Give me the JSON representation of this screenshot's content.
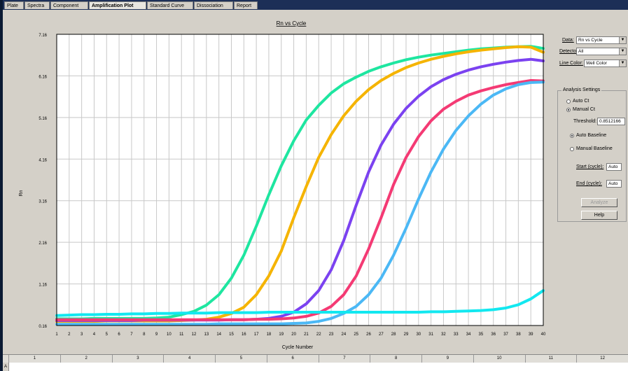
{
  "tabs": [
    {
      "label": "Plate",
      "active": false
    },
    {
      "label": "Spectra",
      "active": false
    },
    {
      "label": "Component",
      "active": false
    },
    {
      "label": "Amplification Plot",
      "active": true
    },
    {
      "label": "Standard Curve",
      "active": false
    },
    {
      "label": "Dissociation",
      "active": false
    },
    {
      "label": "Report",
      "active": false
    }
  ],
  "controls": {
    "data_label": "Data:",
    "data_value": "Rn vs Cycle",
    "detector_label": "Detector:",
    "detector_value": "All",
    "line_color_label": "Line Color:",
    "line_color_value": "Well Color"
  },
  "analysis": {
    "title": "Analysis Settings",
    "auto_ct": "Auto Ct",
    "manual_ct": "Manual Ct",
    "threshold_label": "Threshold:",
    "threshold_value": "0.8512166",
    "auto_baseline": "Auto Baseline",
    "manual_baseline": "Manual Baseline",
    "start_label": "Start (cycle):",
    "start_value": "Auto",
    "end_label": "End (cycle):",
    "end_value": "Auto",
    "analyze_button": "Analyze",
    "help_button": "Help"
  },
  "table": {
    "row_label": "A",
    "columns": [
      "1",
      "2",
      "3",
      "4",
      "5",
      "6",
      "7",
      "8",
      "9",
      "10",
      "11",
      "12"
    ]
  },
  "chart_data": {
    "type": "line",
    "title": "Rn vs Cycle",
    "xlabel": "Cycle Number",
    "ylabel": "Rn",
    "xlim": [
      1,
      40
    ],
    "ylim": [
      0.16,
      7.16
    ],
    "yticks": [
      0.16,
      1.16,
      2.16,
      3.16,
      4.16,
      5.16,
      6.16,
      7.16
    ],
    "ytick_labels": [
      "0.16",
      "1.16",
      "2.16",
      "3.16",
      "4.16",
      "5.16",
      "6.16",
      "7.16"
    ],
    "x": [
      1,
      2,
      3,
      4,
      5,
      6,
      7,
      8,
      9,
      10,
      11,
      12,
      13,
      14,
      15,
      16,
      17,
      18,
      19,
      20,
      21,
      22,
      23,
      24,
      25,
      26,
      27,
      28,
      29,
      30,
      31,
      32,
      33,
      34,
      35,
      36,
      37,
      38,
      39,
      40
    ],
    "grid": true,
    "series": [
      {
        "color": "#1ee6a0",
        "values": [
          0.32,
          0.32,
          0.32,
          0.33,
          0.33,
          0.33,
          0.33,
          0.33,
          0.34,
          0.36,
          0.42,
          0.5,
          0.65,
          0.9,
          1.3,
          1.85,
          2.55,
          3.3,
          4.0,
          4.6,
          5.1,
          5.45,
          5.75,
          5.97,
          6.13,
          6.27,
          6.38,
          6.47,
          6.55,
          6.61,
          6.66,
          6.7,
          6.74,
          6.78,
          6.81,
          6.83,
          6.85,
          6.86,
          6.87,
          6.82
        ]
      },
      {
        "color": "#f5b400",
        "values": [
          0.26,
          0.26,
          0.26,
          0.26,
          0.27,
          0.27,
          0.27,
          0.27,
          0.27,
          0.27,
          0.28,
          0.29,
          0.31,
          0.36,
          0.45,
          0.6,
          0.9,
          1.35,
          1.95,
          2.75,
          3.5,
          4.2,
          4.75,
          5.2,
          5.55,
          5.83,
          6.05,
          6.22,
          6.36,
          6.47,
          6.56,
          6.63,
          6.69,
          6.74,
          6.78,
          6.81,
          6.84,
          6.86,
          6.85,
          6.73
        ]
      },
      {
        "color": "#7b42f0",
        "values": [
          0.28,
          0.28,
          0.28,
          0.28,
          0.28,
          0.28,
          0.28,
          0.29,
          0.29,
          0.29,
          0.29,
          0.29,
          0.29,
          0.29,
          0.3,
          0.3,
          0.31,
          0.33,
          0.38,
          0.48,
          0.68,
          1.0,
          1.5,
          2.2,
          3.05,
          3.85,
          4.5,
          5.0,
          5.38,
          5.67,
          5.9,
          6.07,
          6.2,
          6.3,
          6.38,
          6.44,
          6.49,
          6.53,
          6.56,
          6.52
        ]
      },
      {
        "color": "#f43a74",
        "values": [
          0.3,
          0.3,
          0.3,
          0.3,
          0.3,
          0.3,
          0.3,
          0.3,
          0.3,
          0.3,
          0.3,
          0.3,
          0.3,
          0.3,
          0.3,
          0.3,
          0.31,
          0.31,
          0.32,
          0.34,
          0.38,
          0.46,
          0.62,
          0.9,
          1.35,
          2.0,
          2.75,
          3.55,
          4.2,
          4.7,
          5.08,
          5.36,
          5.55,
          5.7,
          5.8,
          5.88,
          5.95,
          6.0,
          6.05,
          6.04
        ]
      },
      {
        "color": "#4bb8f5",
        "values": [
          0.19,
          0.19,
          0.19,
          0.19,
          0.19,
          0.19,
          0.19,
          0.19,
          0.19,
          0.19,
          0.19,
          0.19,
          0.19,
          0.2,
          0.2,
          0.2,
          0.2,
          0.2,
          0.2,
          0.21,
          0.22,
          0.26,
          0.33,
          0.45,
          0.62,
          0.9,
          1.3,
          1.85,
          2.5,
          3.2,
          3.85,
          4.4,
          4.85,
          5.2,
          5.48,
          5.7,
          5.85,
          5.95,
          6.0,
          6.01
        ]
      },
      {
        "color": "#12e8f0",
        "values": [
          0.4,
          0.41,
          0.42,
          0.42,
          0.43,
          0.43,
          0.44,
          0.44,
          0.45,
          0.45,
          0.46,
          0.46,
          0.46,
          0.47,
          0.47,
          0.47,
          0.47,
          0.48,
          0.48,
          0.48,
          0.48,
          0.48,
          0.48,
          0.48,
          0.48,
          0.48,
          0.48,
          0.48,
          0.48,
          0.48,
          0.49,
          0.49,
          0.5,
          0.51,
          0.52,
          0.54,
          0.58,
          0.66,
          0.8,
          1.0
        ]
      }
    ]
  }
}
